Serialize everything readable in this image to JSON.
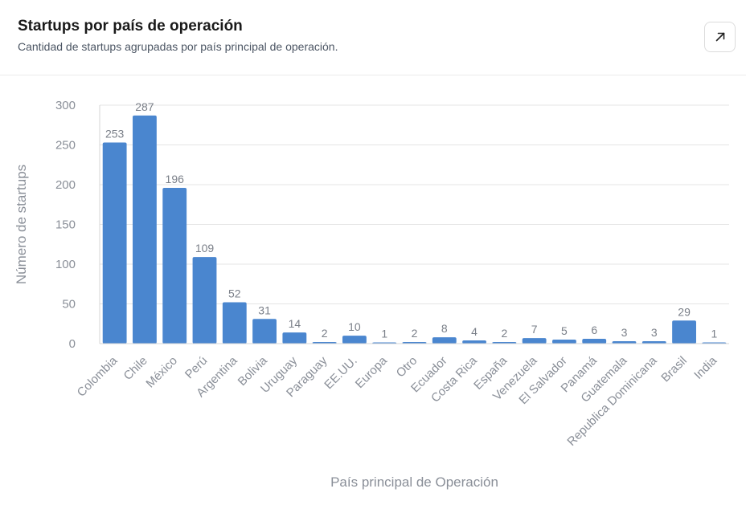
{
  "header": {
    "title": "Startups por país de operación",
    "subtitle": "Cantidad de startups agrupadas por país principal de operación.",
    "expand_icon": "arrow-up-right-icon"
  },
  "colors": {
    "bar": "#4a86cf",
    "grid": "#e5e5e5",
    "axis_text": "#8a8f98"
  },
  "chart_data": {
    "type": "bar",
    "title": "",
    "xlabel": "País principal de Operación",
    "ylabel": "Número de startups",
    "ylim": [
      0,
      300
    ],
    "yticks": [
      0,
      50,
      100,
      150,
      200,
      250,
      300
    ],
    "grid": true,
    "categories": [
      "Colombia",
      "Chile",
      "México",
      "Perú",
      "Argentina",
      "Bolivia",
      "Uruguay",
      "Paraguay",
      "EE.UU.",
      "Europa",
      "Otro",
      "Ecuador",
      "Costa Rica",
      "España",
      "Venezuela",
      "El Salvador",
      "Panamá",
      "Guatemala",
      "Republica Dominicana",
      "Brasil",
      "India"
    ],
    "values": [
      253,
      287,
      196,
      109,
      52,
      31,
      14,
      2,
      10,
      1,
      2,
      8,
      4,
      2,
      7,
      5,
      6,
      3,
      3,
      29,
      1
    ]
  }
}
